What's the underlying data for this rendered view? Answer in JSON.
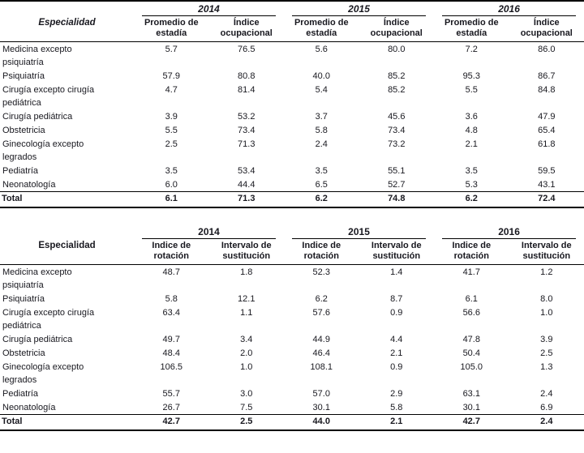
{
  "table1": {
    "especialidad_label": "Especialidad",
    "years": [
      "2014",
      "2015",
      "2016"
    ],
    "col_headers": [
      "Promedio de estadía",
      "Índice ocupacional",
      "Promedio de estadía",
      "Índice ocupacional",
      "Promedio de estadía",
      "Índice ocupacional"
    ],
    "rows": [
      {
        "name": "Medicina excepto psiquiatría",
        "v": [
          "5.7",
          "76.5",
          "5.6",
          "80.0",
          "7.2",
          "86.0"
        ]
      },
      {
        "name": "Psiquiatría",
        "v": [
          "57.9",
          "80.8",
          "40.0",
          "85.2",
          "95.3",
          "86.7"
        ]
      },
      {
        "name": "Cirugía excepto cirugía pediátrica",
        "v": [
          "4.7",
          "81.4",
          "5.4",
          "85.2",
          "5.5",
          "84.8"
        ]
      },
      {
        "name": "Cirugía pediátrica",
        "v": [
          "3.9",
          "53.2",
          "3.7",
          "45.6",
          "3.6",
          "47.9"
        ]
      },
      {
        "name": "Obstetricia",
        "v": [
          "5.5",
          "73.4",
          "5.8",
          "73.4",
          "4.8",
          "65.4"
        ]
      },
      {
        "name": "Ginecología excepto legrados",
        "v": [
          "2.5",
          "71.3",
          "2.4",
          "73.2",
          "2.1",
          "61.8"
        ]
      },
      {
        "name": "Pediatría",
        "v": [
          "3.5",
          "53.4",
          "3.5",
          "55.1",
          "3.5",
          "59.5"
        ]
      },
      {
        "name": "Neonatología",
        "v": [
          "6.0",
          "44.4",
          "6.5",
          "52.7",
          "5.3",
          "43.1"
        ]
      }
    ],
    "total": {
      "label": "Total",
      "v": [
        "6.1",
        "71.3",
        "6.2",
        "74.8",
        "6.2",
        "72.4"
      ]
    }
  },
  "table2": {
    "especialidad_label": "Especialidad",
    "years": [
      "2014",
      "2015",
      "2016"
    ],
    "col_headers": [
      "Indice de rotación",
      "Intervalo de sustitución",
      "Indice de rotación",
      "Intervalo de sustitución",
      "Indice de rotación",
      "Intervalo de sustitución"
    ],
    "rows": [
      {
        "name": "Medicina excepto psiquiatría",
        "v": [
          "48.7",
          "1.8",
          "52.3",
          "1.4",
          "41.7",
          "1.2"
        ]
      },
      {
        "name": "Psiquiatría",
        "v": [
          "5.8",
          "12.1",
          "6.2",
          "8.7",
          "6.1",
          "8.0"
        ]
      },
      {
        "name": "Cirugía excepto cirugía pediátrica",
        "v": [
          "63.4",
          "1.1",
          "57.6",
          "0.9",
          "56.6",
          "1.0"
        ]
      },
      {
        "name": "Cirugía pediátrica",
        "v": [
          "49.7",
          "3.4",
          "44.9",
          "4.4",
          "47.8",
          "3.9"
        ]
      },
      {
        "name": "Obstetricia",
        "v": [
          "48.4",
          "2.0",
          "46.4",
          "2.1",
          "50.4",
          "2.5"
        ]
      },
      {
        "name": "Ginecología excepto legrados",
        "v": [
          "106.5",
          "1.0",
          "108.1",
          "0.9",
          "105.0",
          "1.3"
        ]
      },
      {
        "name": "Pediatría",
        "v": [
          "55.7",
          "3.0",
          "57.0",
          "2.9",
          "63.1",
          "2.4"
        ]
      },
      {
        "name": "Neonatología",
        "v": [
          "26.7",
          "7.5",
          "30.1",
          "5.8",
          "30.1",
          "6.9"
        ]
      }
    ],
    "total": {
      "label": "Total",
      "v": [
        "42.7",
        "2.5",
        "44.0",
        "2.1",
        "42.7",
        "2.4"
      ]
    }
  }
}
